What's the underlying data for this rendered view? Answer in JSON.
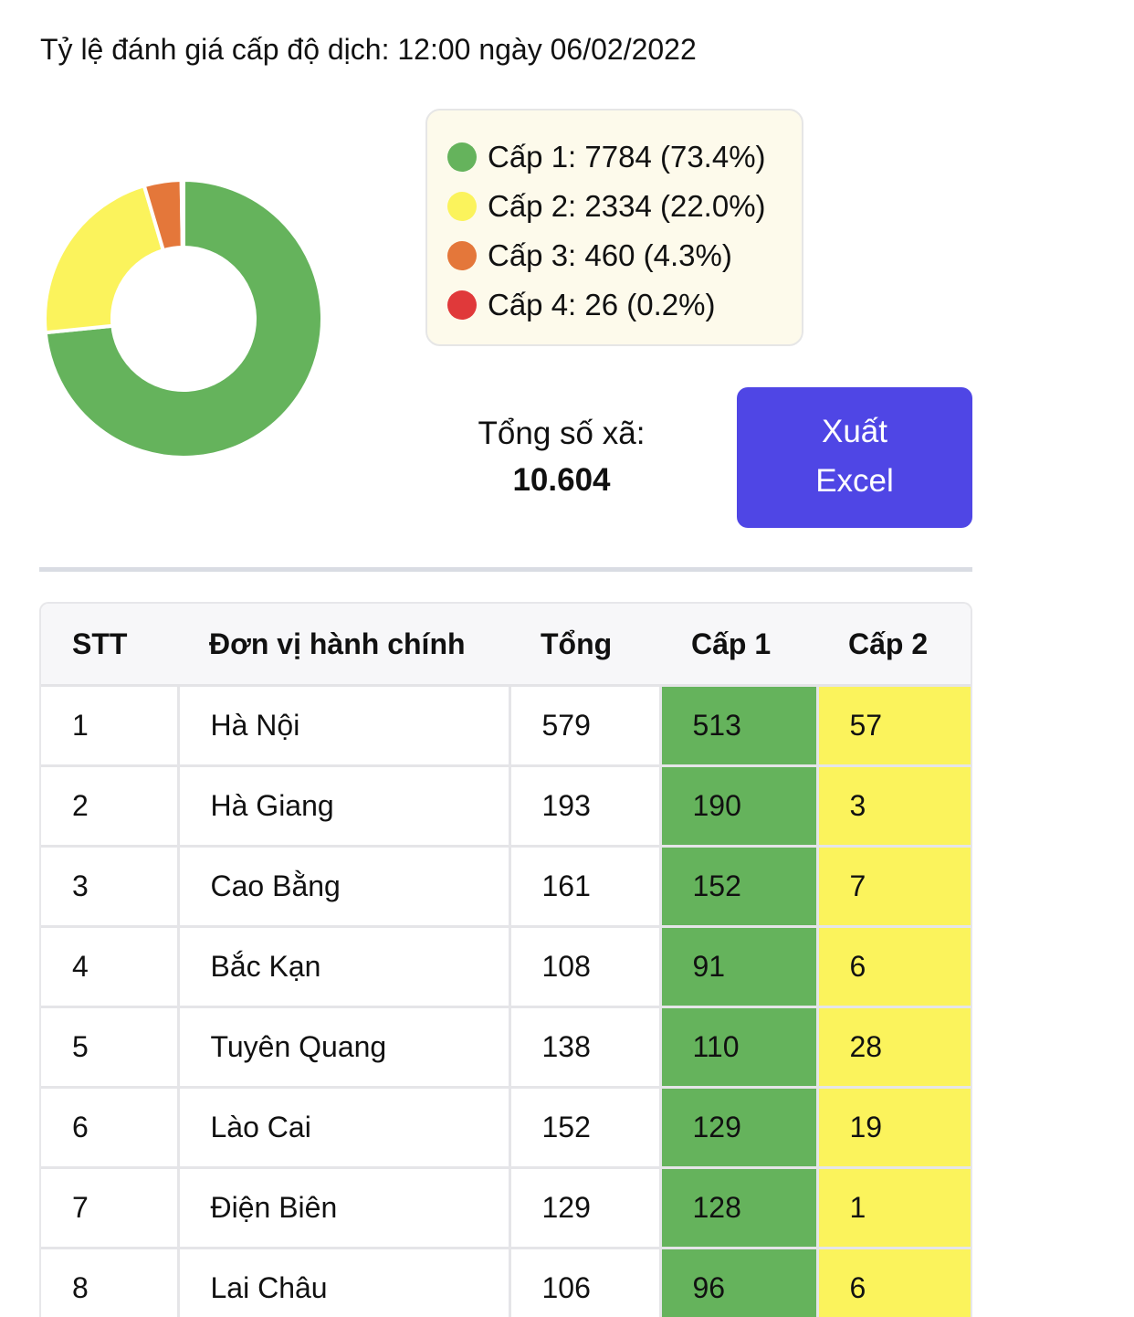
{
  "header": {
    "title": "Tỷ lệ đánh giá cấp độ dịch: 12:00 ngày 06/02/2022"
  },
  "chart_data": {
    "type": "pie",
    "donut": true,
    "categories": [
      "Cấp 1",
      "Cấp 2",
      "Cấp 3",
      "Cấp 4"
    ],
    "values": [
      7784,
      2334,
      460,
      26
    ],
    "colors": [
      "#65b35c",
      "#fbf35c",
      "#e4773a",
      "#e0393a"
    ]
  },
  "legend": {
    "items": [
      {
        "label": "Cấp 1: 7784 (73.4%)",
        "color": "#65b35c"
      },
      {
        "label": "Cấp 2: 2334 (22.0%)",
        "color": "#fbf35c"
      },
      {
        "label": "Cấp 3: 460 (4.3%)",
        "color": "#e4773a"
      },
      {
        "label": "Cấp 4: 26 (0.2%)",
        "color": "#e0393a"
      }
    ]
  },
  "summary": {
    "total_label": "Tổng số xã:",
    "total_value": "10.604"
  },
  "actions": {
    "export_line1": "Xuất",
    "export_line2": "Excel",
    "export_color": "#4f46e5"
  },
  "table": {
    "headers": [
      "STT",
      "Đơn vị hành chính",
      "Tổng",
      "Cấp 1",
      "Cấp 2"
    ],
    "rows": [
      [
        "1",
        "Hà Nội",
        "579",
        "513",
        "57"
      ],
      [
        "2",
        "Hà Giang",
        "193",
        "190",
        "3"
      ],
      [
        "3",
        "Cao Bằng",
        "161",
        "152",
        "7"
      ],
      [
        "4",
        "Bắc Kạn",
        "108",
        "91",
        "6"
      ],
      [
        "5",
        "Tuyên Quang",
        "138",
        "110",
        "28"
      ],
      [
        "6",
        "Lào Cai",
        "152",
        "129",
        "19"
      ],
      [
        "7",
        "Điện Biên",
        "129",
        "128",
        "1"
      ],
      [
        "8",
        "Lai Châu",
        "106",
        "96",
        "6"
      ]
    ]
  }
}
